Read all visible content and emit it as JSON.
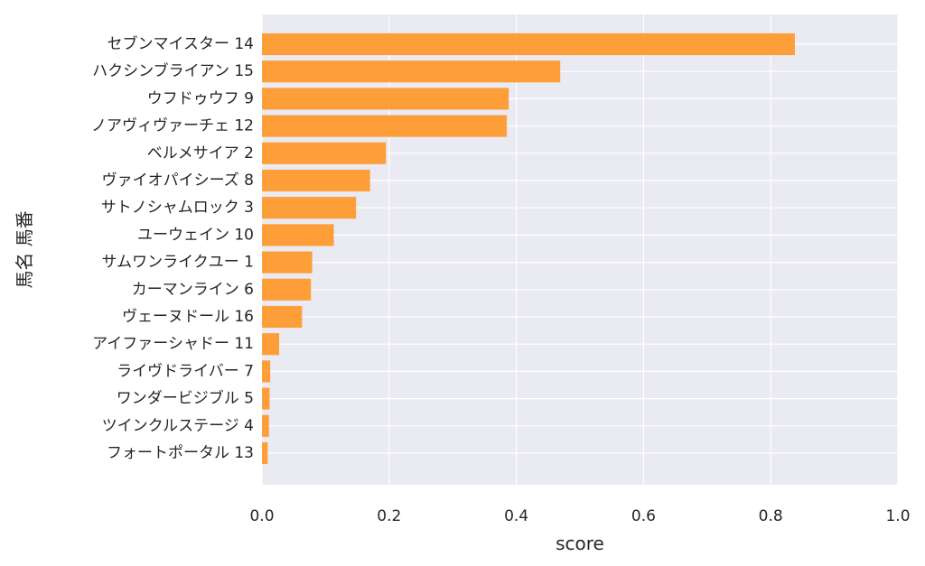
{
  "chart_data": {
    "type": "bar",
    "orientation": "horizontal",
    "categories": [
      "セブンマイスター 14",
      "ハクシンブライアン 15",
      "ウフドゥウフ 9",
      "ノアヴィヴァーチェ 12",
      "ベルメサイア 2",
      "ヴァイオパイシーズ 8",
      "サトノシャムロック 3",
      "ユーウェイン 10",
      "サムワンライクユー 1",
      "カーマンライン 6",
      "ヴェーヌドール 16",
      "アイファーシャドー 11",
      "ライヴドライバー 7",
      "ワンダービジブル 5",
      "ツインクルステージ 4",
      "フォートポータル 13"
    ],
    "values": [
      0.838,
      0.469,
      0.388,
      0.385,
      0.195,
      0.17,
      0.148,
      0.113,
      0.079,
      0.077,
      0.063,
      0.027,
      0.013,
      0.012,
      0.011,
      0.009
    ],
    "xlabel": "score",
    "ylabel": "馬名 馬番",
    "xlim": [
      0,
      1.0
    ],
    "xticks": [
      "0.0",
      "0.2",
      "0.4",
      "0.6",
      "0.8",
      "1.0"
    ],
    "grid": true,
    "colors": {
      "bar": "#ff9a2e",
      "background": "#eaeaf2",
      "grid": "#ffffff",
      "text": "#262626"
    }
  }
}
